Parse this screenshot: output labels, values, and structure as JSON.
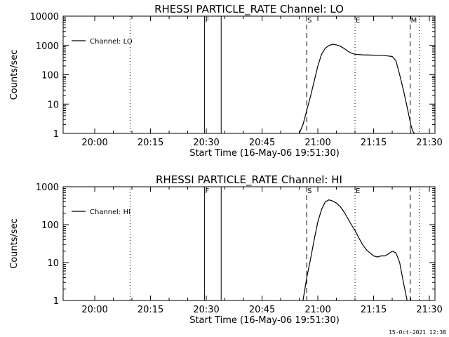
{
  "timestamp": "15-Oct-2021 12:38",
  "chart_data": [
    {
      "type": "line",
      "title": "RHESSI PARTICLE_RATE Channel: LO",
      "xlabel": "Start Time (16-May-06 19:51:30)",
      "ylabel": "Counts/sec",
      "y_scale": "log",
      "xlim": [
        "19:51:30",
        "21:31:30"
      ],
      "ylim": [
        1,
        10000
      ],
      "x_ticks": [
        "20:00",
        "20:15",
        "20:30",
        "20:45",
        "21:00",
        "21:15",
        "21:30"
      ],
      "y_ticks": [
        "1",
        "10",
        "100",
        "1000",
        "10000"
      ],
      "legend": {
        "position": "top-left",
        "entries": [
          "Channel: LO"
        ]
      },
      "series": [
        {
          "name": "Channel: LO",
          "x": [
            "20:55:00",
            "20:56:00",
            "20:57:00",
            "20:58:00",
            "20:59:00",
            "21:00:00",
            "21:01:00",
            "21:02:00",
            "21:03:00",
            "21:04:00",
            "21:05:00",
            "21:06:00",
            "21:07:00",
            "21:08:00",
            "21:09:00",
            "21:10:00",
            "21:12:00",
            "21:14:00",
            "21:16:00",
            "21:18:00",
            "21:20:00",
            "21:21:00",
            "21:22:00",
            "21:23:00",
            "21:24:00",
            "21:25:00",
            "21:25:30",
            "21:26:00"
          ],
          "y": [
            1,
            2,
            6,
            18,
            60,
            200,
            500,
            800,
            1000,
            1100,
            1050,
            950,
            800,
            650,
            550,
            500,
            480,
            470,
            460,
            450,
            420,
            300,
            100,
            30,
            8,
            2,
            1.2,
            1
          ]
        }
      ],
      "markers": [
        {
          "time": "20:09:30",
          "label": "",
          "style": "dotted"
        },
        {
          "time": "20:29:30",
          "label": "F",
          "style": "solid"
        },
        {
          "time": "20:34:00",
          "label": "",
          "style": "solid"
        },
        {
          "time": "20:57:00",
          "label": "S",
          "style": "dashed"
        },
        {
          "time": "21:10:00",
          "label": "E",
          "style": "dotted"
        },
        {
          "time": "21:24:50",
          "label": "M",
          "style": "dashed"
        },
        {
          "time": "21:27:15",
          "label": "",
          "style": "dotted"
        }
      ]
    },
    {
      "type": "line",
      "title": "RHESSI PARTICLE_RATE Channel: HI",
      "xlabel": "Start Time (16-May-06 19:51:30)",
      "ylabel": "Counts/sec",
      "y_scale": "log",
      "xlim": [
        "19:51:30",
        "21:31:30"
      ],
      "ylim": [
        1,
        1000
      ],
      "x_ticks": [
        "20:00",
        "20:15",
        "20:30",
        "20:45",
        "21:00",
        "21:15",
        "21:30"
      ],
      "y_ticks": [
        "1",
        "10",
        "100",
        "1000"
      ],
      "legend": {
        "position": "top-left",
        "entries": [
          "Channel: HI"
        ]
      },
      "series": [
        {
          "name": "Channel: HI",
          "x": [
            "20:56:00",
            "20:57:00",
            "20:58:00",
            "20:59:00",
            "21:00:00",
            "21:01:00",
            "21:02:00",
            "21:03:00",
            "21:04:00",
            "21:05:00",
            "21:06:00",
            "21:07:00",
            "21:08:00",
            "21:09:00",
            "21:10:00",
            "21:11:00",
            "21:12:00",
            "21:13:00",
            "21:14:00",
            "21:15:00",
            "21:16:00",
            "21:17:00",
            "21:18:00",
            "21:19:00",
            "21:20:00",
            "21:21:00",
            "21:22:00",
            "21:23:00",
            "21:24:00"
          ],
          "y": [
            1,
            4,
            12,
            40,
            120,
            250,
            400,
            450,
            420,
            370,
            300,
            220,
            150,
            100,
            70,
            45,
            30,
            22,
            18,
            15,
            14,
            15,
            15,
            17,
            20,
            18,
            10,
            3,
            1
          ]
        }
      ],
      "markers": [
        {
          "time": "20:09:30",
          "label": "",
          "style": "dotted"
        },
        {
          "time": "20:29:30",
          "label": "F",
          "style": "solid"
        },
        {
          "time": "20:34:00",
          "label": "",
          "style": "solid"
        },
        {
          "time": "20:57:00",
          "label": "S",
          "style": "dashed"
        },
        {
          "time": "21:10:00",
          "label": "E",
          "style": "dotted"
        },
        {
          "time": "21:24:50",
          "label": "",
          "style": "dashed"
        },
        {
          "time": "21:27:15",
          "label": "",
          "style": "dotted"
        }
      ]
    }
  ]
}
